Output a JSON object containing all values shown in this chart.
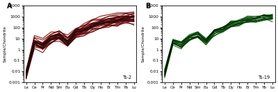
{
  "elements": [
    "La",
    "Ce",
    "Pr",
    "Nd",
    "Sm",
    "Eu",
    "Gd",
    "Tb",
    "Dy",
    "Ho",
    "Er",
    "Tm",
    "Yb",
    "Lu"
  ],
  "panel_A_label": "Ts-2",
  "panel_B_label": "Ts-19",
  "panel_A_color": "#cc0000",
  "panel_B_color": "#009900",
  "line_color": "#111111",
  "ylim_log": [
    0.001,
    10000
  ],
  "ylabel": "Sample/Chondrite",
  "panel_A_letter": "A",
  "panel_B_letter": "B",
  "n_lines_A": 28,
  "n_lines_B": 16,
  "seed": 7,
  "base_pattern": [
    0.006,
    5.0,
    2.5,
    12.0,
    20.0,
    5.0,
    40.0,
    70.0,
    180.0,
    280.0,
    450.0,
    550.0,
    800.0,
    900.0
  ],
  "spread_A": 0.7,
  "spread_B": 0.55
}
